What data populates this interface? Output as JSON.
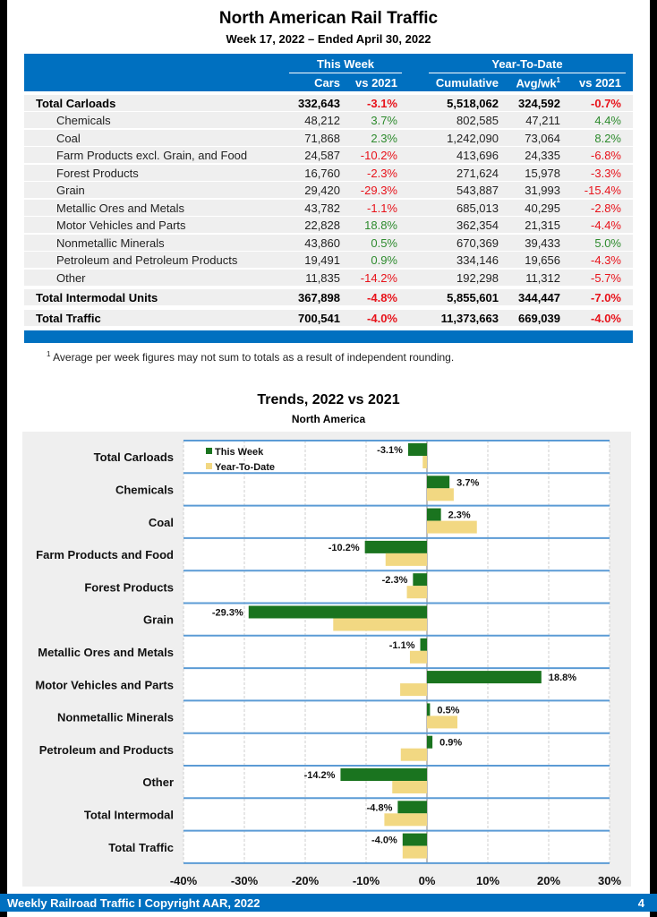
{
  "header": {
    "title": "North American Rail Traffic",
    "subtitle": "Week 17, 2022 – Ended April 30, 2022"
  },
  "table": {
    "group_headers": [
      "This Week",
      "Year-To-Date"
    ],
    "columns": [
      "Cars",
      "vs 2021",
      "Cumulative",
      "Avg/wk",
      "vs 2021"
    ],
    "avg_footnote_marker": "1",
    "rows": [
      {
        "label": "Total Carloads",
        "bold": true,
        "cars": "332,643",
        "vs_week": "-3.1%",
        "cumulative": "5,518,062",
        "avg_wk": "324,592",
        "vs_ytd": "-0.7%"
      },
      {
        "label": "Chemicals",
        "bold": false,
        "cars": "48,212",
        "vs_week": "3.7%",
        "cumulative": "802,585",
        "avg_wk": "47,211",
        "vs_ytd": "4.4%"
      },
      {
        "label": "Coal",
        "bold": false,
        "cars": "71,868",
        "vs_week": "2.3%",
        "cumulative": "1,242,090",
        "avg_wk": "73,064",
        "vs_ytd": "8.2%"
      },
      {
        "label": "Farm Products excl. Grain, and Food",
        "bold": false,
        "cars": "24,587",
        "vs_week": "-10.2%",
        "cumulative": "413,696",
        "avg_wk": "24,335",
        "vs_ytd": "-6.8%"
      },
      {
        "label": "Forest Products",
        "bold": false,
        "cars": "16,760",
        "vs_week": "-2.3%",
        "cumulative": "271,624",
        "avg_wk": "15,978",
        "vs_ytd": "-3.3%"
      },
      {
        "label": "Grain",
        "bold": false,
        "cars": "29,420",
        "vs_week": "-29.3%",
        "cumulative": "543,887",
        "avg_wk": "31,993",
        "vs_ytd": "-15.4%"
      },
      {
        "label": "Metallic Ores and Metals",
        "bold": false,
        "cars": "43,782",
        "vs_week": "-1.1%",
        "cumulative": "685,013",
        "avg_wk": "40,295",
        "vs_ytd": "-2.8%"
      },
      {
        "label": "Motor Vehicles and Parts",
        "bold": false,
        "cars": "22,828",
        "vs_week": "18.8%",
        "cumulative": "362,354",
        "avg_wk": "21,315",
        "vs_ytd": "-4.4%"
      },
      {
        "label": "Nonmetallic Minerals",
        "bold": false,
        "cars": "43,860",
        "vs_week": "0.5%",
        "cumulative": "670,369",
        "avg_wk": "39,433",
        "vs_ytd": "5.0%"
      },
      {
        "label": "Petroleum and Petroleum Products",
        "bold": false,
        "cars": "19,491",
        "vs_week": "0.9%",
        "cumulative": "334,146",
        "avg_wk": "19,656",
        "vs_ytd": "-4.3%"
      },
      {
        "label": "Other",
        "bold": false,
        "cars": "11,835",
        "vs_week": "-14.2%",
        "cumulative": "192,298",
        "avg_wk": "11,312",
        "vs_ytd": "-5.7%"
      },
      {
        "label": "Total Intermodal Units",
        "bold": true,
        "cars": "367,898",
        "vs_week": "-4.8%",
        "cumulative": "5,855,601",
        "avg_wk": "344,447",
        "vs_ytd": "-7.0%"
      },
      {
        "label": "Total Traffic",
        "bold": true,
        "cars": "700,541",
        "vs_week": "-4.0%",
        "cumulative": "11,373,663",
        "avg_wk": "669,039",
        "vs_ytd": "-4.0%"
      }
    ],
    "footnote_marker": "1",
    "footnote": "Average per week figures may not sum to totals as a result of independent rounding."
  },
  "colors": {
    "brand_blue": "#0070c0",
    "negative": "#e8121a",
    "positive": "#2e8b2e",
    "this_week_bar": "#1a741f",
    "ytd_bar": "#f2d882",
    "row_line": "#5b9bd5"
  },
  "chart_data": {
    "type": "bar",
    "orientation": "horizontal",
    "title": "Trends, 2022 vs 2021",
    "subtitle": "North America",
    "categories": [
      "Total Carloads",
      "Chemicals",
      "Coal",
      "Farm Products and Food",
      "Forest Products",
      "Grain",
      "Metallic Ores and Metals",
      "Motor Vehicles and Parts",
      "Nonmetallic Minerals",
      "Petroleum and Products",
      "Other",
      "Total Intermodal",
      "Total Traffic"
    ],
    "series": [
      {
        "name": "This Week",
        "values": [
          -3.1,
          3.7,
          2.3,
          -10.2,
          -2.3,
          -29.3,
          -1.1,
          18.8,
          0.5,
          0.9,
          -14.2,
          -4.8,
          -4.0
        ],
        "labels": [
          "-3.1%",
          "3.7%",
          "2.3%",
          "-10.2%",
          "-2.3%",
          "-29.3%",
          "-1.1%",
          "18.8%",
          "0.5%",
          "0.9%",
          "-14.2%",
          "-4.8%",
          "-4.0%"
        ]
      },
      {
        "name": "Year-To-Date",
        "values": [
          -0.7,
          4.4,
          8.2,
          -6.8,
          -3.3,
          -15.4,
          -2.8,
          -4.4,
          5.0,
          -4.3,
          -5.7,
          -7.0,
          -4.0
        ]
      }
    ],
    "xlim": [
      -40,
      30
    ],
    "xticks": [
      "-40%",
      "-30%",
      "-20%",
      "-10%",
      "0%",
      "10%",
      "20%",
      "30%"
    ],
    "xtick_values": [
      -40,
      -30,
      -20,
      -10,
      0,
      10,
      20,
      30
    ],
    "xlabel": "",
    "ylabel": "",
    "grid": true,
    "legend": "top-left"
  },
  "footer": {
    "text": "Weekly Railroad Traffic I Copyright AAR, 2022",
    "page": "4"
  }
}
